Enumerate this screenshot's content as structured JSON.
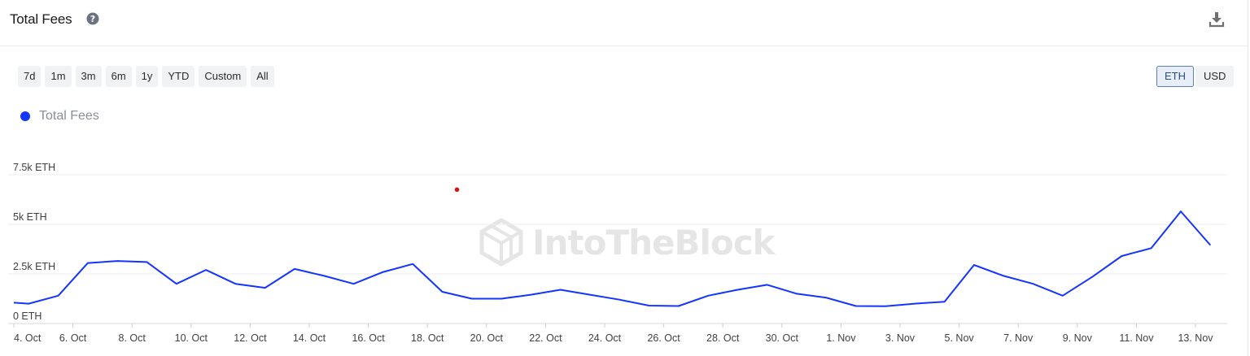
{
  "header": {
    "title": "Total Fees",
    "help_icon": "question-circle-icon",
    "download_icon": "download-icon"
  },
  "range_buttons": [
    "7d",
    "1m",
    "3m",
    "6m",
    "1y",
    "YTD",
    "Custom",
    "All"
  ],
  "unit_toggle": {
    "options": [
      "ETH",
      "USD"
    ],
    "selected": "ETH"
  },
  "watermark": {
    "text": "IntoTheBlock"
  },
  "colors": {
    "series": "#1434ff",
    "marker": "#d0161c",
    "grid": "#eceef1"
  },
  "chart_data": {
    "type": "line",
    "x_start_label": "4. Oct",
    "x_labels": [
      "4. Oct",
      "6. Oct",
      "8. Oct",
      "10. Oct",
      "12. Oct",
      "14. Oct",
      "16. Oct",
      "18. Oct",
      "20. Oct",
      "22. Oct",
      "24. Oct",
      "26. Oct",
      "28. Oct",
      "30. Oct",
      "1. Nov",
      "3. Nov",
      "5. Nov",
      "7. Nov",
      "9. Nov",
      "11. Nov",
      "13. Nov"
    ],
    "y_ticks": [
      "0 ETH",
      "2.5k ETH",
      "5k ETH",
      "7.5k ETH"
    ],
    "y_tick_values": [
      0,
      2500,
      5000,
      7500
    ],
    "ylim": [
      0,
      7500
    ],
    "series": [
      {
        "name": "Total Fees",
        "values": [
          1050,
          1000,
          1400,
          3050,
          3150,
          3100,
          2000,
          2700,
          2000,
          1800,
          2750,
          2400,
          2000,
          2600,
          3000,
          1600,
          1250,
          1250,
          1450,
          1700,
          1450,
          1200,
          900,
          880,
          1400,
          1700,
          1950,
          1500,
          1300,
          880,
          870,
          1000,
          1100,
          2950,
          2400,
          2000,
          1400,
          2350,
          3400,
          3800,
          5650,
          3950
        ]
      }
    ],
    "marker": {
      "x_date": "19. Oct",
      "y": 6750
    },
    "grid": true,
    "legend": "top-left"
  }
}
